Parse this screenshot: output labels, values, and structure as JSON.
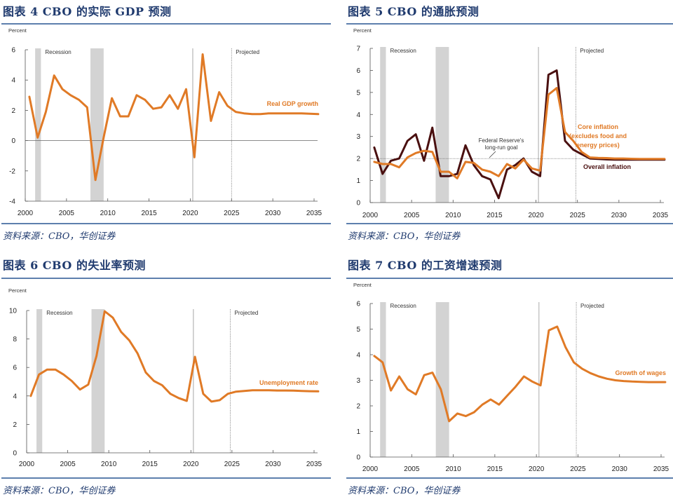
{
  "source_text": "资料来源：CBO，华创证券",
  "chart_data": [
    {
      "id": "fig4",
      "type": "line",
      "title": "图表 4   CBO 的实际 GDP 预测",
      "ylabel": "Percent",
      "xlabel": "",
      "ylim": [
        -4,
        6
      ],
      "yticks": [
        6,
        4,
        2,
        0,
        -2,
        -4
      ],
      "xticks": [
        2000,
        2005,
        2010,
        2015,
        2020,
        2025,
        2030,
        2035
      ],
      "xlim": [
        2000,
        2035.5
      ],
      "recession_bands": [
        [
          2001.2,
          2001.9
        ],
        [
          2007.9,
          2009.5
        ]
      ],
      "covid_line": 2020.3,
      "projected_start": 2025.0,
      "annotations": {
        "recession": "Recession",
        "projected": "Projected"
      },
      "grid": false,
      "zero_line": true,
      "series": [
        {
          "name": "Real GDP growth",
          "color": "#e07a26",
          "x": [
            2000.5,
            2001.5,
            2002.5,
            2003.5,
            2004.5,
            2005.5,
            2006.5,
            2007.5,
            2008.5,
            2009.5,
            2010.5,
            2011.5,
            2012.5,
            2013.5,
            2014.5,
            2015.5,
            2016.5,
            2017.5,
            2018.5,
            2019.5,
            2020.5,
            2021.5,
            2022.5,
            2023.5,
            2024.5,
            2025.5,
            2026.5,
            2027.5,
            2028.5,
            2029.5,
            2030.5,
            2031.5,
            2032.5,
            2033.5,
            2034.5,
            2035.5
          ],
          "values": [
            2.9,
            0.2,
            1.9,
            4.3,
            3.4,
            3.0,
            2.7,
            2.2,
            -2.6,
            0.2,
            2.8,
            1.6,
            1.6,
            3.0,
            2.7,
            2.1,
            2.2,
            3.0,
            2.1,
            3.4,
            -1.1,
            5.7,
            1.3,
            3.2,
            2.3,
            1.9,
            1.8,
            1.75,
            1.75,
            1.8,
            1.8,
            1.8,
            1.8,
            1.8,
            1.78,
            1.75
          ]
        }
      ]
    },
    {
      "id": "fig5",
      "type": "line",
      "title": "图表 5   CBO 的通胀预测",
      "ylabel": "Percent",
      "xlabel": "",
      "ylim": [
        0,
        7
      ],
      "yticks": [
        7,
        6,
        5,
        4,
        3,
        2,
        1,
        0
      ],
      "xticks": [
        2000,
        2005,
        2010,
        2015,
        2020,
        2025,
        2030,
        2035
      ],
      "xlim": [
        2000,
        2035.5
      ],
      "recession_bands": [
        [
          2001.2,
          2001.9
        ],
        [
          2007.9,
          2009.5
        ]
      ],
      "covid_line": 2020.3,
      "projected_start": 2024.8,
      "reference_line": {
        "value": 2.0,
        "label": "Federal Reserve's long-run goal",
        "label_lines": [
          "Federal Reserve's",
          "long-run goal"
        ]
      },
      "annotations": {
        "recession": "Recession",
        "projected": "Projected"
      },
      "grid": false,
      "series": [
        {
          "name": "Overall inflation",
          "color": "#4a1010",
          "x": [
            2000.5,
            2001.5,
            2002.5,
            2003.5,
            2004.5,
            2005.5,
            2006.5,
            2007.5,
            2008.5,
            2009.5,
            2010.5,
            2011.5,
            2012.5,
            2013.5,
            2014.5,
            2015.5,
            2016.5,
            2017.5,
            2018.5,
            2019.5,
            2020.5,
            2021.5,
            2022.5,
            2023.5,
            2024.5,
            2025.5,
            2026.5,
            2027.5,
            2028.5,
            2029.5,
            2030.5,
            2031.5,
            2032.5,
            2033.5,
            2034.5,
            2035.5
          ],
          "values": [
            2.5,
            1.3,
            1.9,
            2.0,
            2.8,
            3.1,
            1.9,
            3.4,
            1.2,
            1.2,
            1.3,
            2.6,
            1.7,
            1.2,
            1.05,
            0.2,
            1.5,
            1.7,
            2.0,
            1.4,
            1.2,
            5.8,
            6.0,
            2.8,
            2.4,
            2.2,
            2.0,
            1.98,
            1.96,
            1.95,
            1.95,
            1.95,
            1.95,
            1.95,
            1.95,
            1.95
          ]
        },
        {
          "name": "Core inflation (excludes food and energy prices)",
          "label_lines": [
            "Core inflation",
            "(excludes food and",
            "energy prices)"
          ],
          "color": "#e07a26",
          "x": [
            2000.5,
            2001.5,
            2002.5,
            2003.5,
            2004.5,
            2005.5,
            2006.5,
            2007.5,
            2008.5,
            2009.5,
            2010.5,
            2011.5,
            2012.5,
            2013.5,
            2014.5,
            2015.5,
            2016.5,
            2017.5,
            2018.5,
            2019.5,
            2020.5,
            2021.5,
            2022.5,
            2023.5,
            2024.5,
            2025.5,
            2026.5,
            2027.5,
            2028.5,
            2029.5,
            2030.5,
            2031.5,
            2032.5,
            2033.5,
            2034.5,
            2035.5
          ],
          "values": [
            1.85,
            1.75,
            1.75,
            1.6,
            2.05,
            2.25,
            2.35,
            2.3,
            1.4,
            1.4,
            1.1,
            1.85,
            1.8,
            1.5,
            1.4,
            1.2,
            1.75,
            1.55,
            1.95,
            1.55,
            1.45,
            4.9,
            5.2,
            3.2,
            2.8,
            2.3,
            2.05,
            2.03,
            2.02,
            2.0,
            2.0,
            1.99,
            1.98,
            1.98,
            1.98,
            1.98
          ]
        }
      ]
    },
    {
      "id": "fig6",
      "type": "line",
      "title": "图表 6   CBO 的失业率预测",
      "ylabel": "Percent",
      "xlabel": "",
      "ylim": [
        0,
        10
      ],
      "yticks": [
        10,
        8,
        6,
        4,
        2,
        0
      ],
      "xticks": [
        2000,
        2005,
        2010,
        2015,
        2020,
        2025,
        2030,
        2035
      ],
      "xlim": [
        2000,
        2035.5
      ],
      "recession_bands": [
        [
          2001.2,
          2001.9
        ],
        [
          2007.9,
          2009.5
        ]
      ],
      "covid_line": 2020.3,
      "projected_start": 2024.8,
      "annotations": {
        "recession": "Recession",
        "projected": "Projected"
      },
      "grid": false,
      "series": [
        {
          "name": "Unemployment rate",
          "color": "#e07a26",
          "x": [
            2000.5,
            2001.5,
            2002.5,
            2003.5,
            2004.5,
            2005.5,
            2006.5,
            2007.5,
            2008.5,
            2009.5,
            2010.5,
            2011.5,
            2012.5,
            2013.5,
            2014.5,
            2015.5,
            2016.5,
            2017.5,
            2018.5,
            2019.5,
            2020.5,
            2021.5,
            2022.5,
            2023.5,
            2024.5,
            2025.5,
            2026.5,
            2027.5,
            2028.5,
            2029.5,
            2030.5,
            2031.5,
            2032.5,
            2033.5,
            2034.5,
            2035.5
          ],
          "values": [
            4.0,
            5.5,
            5.85,
            5.85,
            5.5,
            5.05,
            4.45,
            4.8,
            6.8,
            9.95,
            9.5,
            8.5,
            7.9,
            7.0,
            5.65,
            5.05,
            4.75,
            4.15,
            3.85,
            3.65,
            6.75,
            4.15,
            3.6,
            3.7,
            4.15,
            4.3,
            4.35,
            4.4,
            4.4,
            4.4,
            4.38,
            4.38,
            4.37,
            4.35,
            4.33,
            4.32
          ]
        }
      ]
    },
    {
      "id": "fig7",
      "type": "line",
      "title": "图表 7   CBO 的工资增速预测",
      "ylabel": "Percent",
      "xlabel": "",
      "ylim": [
        0,
        6
      ],
      "yticks": [
        6,
        5,
        4,
        3,
        2,
        1,
        0
      ],
      "xticks": [
        2000,
        2005,
        2010,
        2015,
        2020,
        2025,
        2030,
        2035
      ],
      "xlim": [
        2000,
        2035.5
      ],
      "recession_bands": [
        [
          2001.2,
          2001.9
        ],
        [
          2007.9,
          2009.5
        ]
      ],
      "covid_line": 2020.3,
      "projected_start": 2024.8,
      "annotations": {
        "recession": "Recession",
        "projected": "Projected"
      },
      "grid": false,
      "series": [
        {
          "name": "Growth of wages",
          "color": "#e07a26",
          "x": [
            2000.5,
            2001.5,
            2002.5,
            2003.5,
            2004.5,
            2005.5,
            2006.5,
            2007.5,
            2008.5,
            2009.5,
            2010.5,
            2011.5,
            2012.5,
            2013.5,
            2014.5,
            2015.5,
            2016.5,
            2017.5,
            2018.5,
            2019.5,
            2020.5,
            2021.5,
            2022.5,
            2023.5,
            2024.5,
            2025.5,
            2026.5,
            2027.5,
            2028.5,
            2029.5,
            2030.5,
            2031.5,
            2032.5,
            2033.5,
            2034.5,
            2035.5
          ],
          "values": [
            3.95,
            3.7,
            2.6,
            3.15,
            2.65,
            2.45,
            3.2,
            3.3,
            2.65,
            1.4,
            1.7,
            1.6,
            1.75,
            2.05,
            2.25,
            2.05,
            2.4,
            2.75,
            3.15,
            2.95,
            2.8,
            4.95,
            5.1,
            4.3,
            3.7,
            3.45,
            3.28,
            3.15,
            3.06,
            3.0,
            2.97,
            2.95,
            2.94,
            2.93,
            2.93,
            2.93
          ]
        }
      ]
    }
  ]
}
